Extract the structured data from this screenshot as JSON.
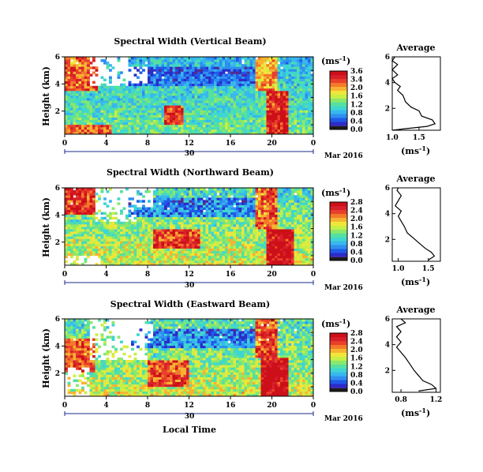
{
  "colors": {
    "scale": [
      "#1c1c1c",
      "#5a2a8c",
      "#2c2cc8",
      "#1f5ae8",
      "#2f8ff0",
      "#37b7ee",
      "#3fd6d0",
      "#56e0a0",
      "#8be86a",
      "#c7ef46",
      "#f0e63a",
      "#f7b232",
      "#f47a2a",
      "#e8402a",
      "#d81f2a",
      "#cc0f18"
    ],
    "axis": "#000000",
    "time_axis": "#1a2a8a",
    "profile": "#000000"
  },
  "chart_data": [
    {
      "type": "heatmap",
      "title": "Spectral Width (Vertical Beam)",
      "ylabel": "Height (km)",
      "yticks": [
        "6",
        "4",
        "2"
      ],
      "ylim": [
        0.3,
        6
      ],
      "xticks": [
        "0",
        "4",
        "8",
        "12",
        "16",
        "20",
        "0"
      ],
      "xlim": [
        0,
        24
      ],
      "date_day": "30",
      "date_month": "Mar 2016",
      "colorbar": {
        "unit_base": "(ms",
        "unit_exp": "-1",
        "unit_close": ")",
        "ticks": [
          "3.6",
          "3.4",
          "2.0",
          "1.6",
          "1.2",
          "0.8",
          "0.4",
          "0.0"
        ],
        "range": [
          0,
          3.6
        ]
      },
      "average": {
        "title": "Average",
        "yticks": [
          "6",
          "4",
          "2"
        ],
        "xticks": [
          "1.0",
          "1.5"
        ],
        "xlim": [
          1.0,
          1.9
        ],
        "xlabel_base": "(ms",
        "xlabel_exp": "-1",
        "xlabel_close": ")",
        "profile": [
          [
            1.0,
            0.3
          ],
          [
            1.2,
            0.4
          ],
          [
            1.65,
            0.6
          ],
          [
            1.8,
            0.8
          ],
          [
            1.75,
            1.1
          ],
          [
            1.55,
            1.4
          ],
          [
            1.5,
            1.8
          ],
          [
            1.35,
            2.1
          ],
          [
            1.25,
            2.5
          ],
          [
            1.2,
            3.0
          ],
          [
            1.1,
            3.4
          ],
          [
            1.15,
            3.7
          ],
          [
            1.05,
            4.0
          ],
          [
            1.0,
            4.3
          ],
          [
            1.1,
            4.6
          ],
          [
            1.0,
            5.0
          ],
          [
            1.1,
            5.4
          ],
          [
            1.0,
            5.7
          ],
          [
            1.05,
            6.0
          ]
        ]
      },
      "regions": [
        {
          "t0": 0,
          "t1": 3.2,
          "h0": 3.5,
          "h1": 6,
          "v": 3.0
        },
        {
          "t0": 0,
          "t1": 4.5,
          "h0": 0.3,
          "h1": 1.0,
          "v": 2.8
        },
        {
          "t0": 9.5,
          "t1": 11.5,
          "h0": 1.0,
          "h1": 2.5,
          "v": 3.1
        },
        {
          "t0": 19.5,
          "t1": 21.5,
          "h0": 0.3,
          "h1": 3.5,
          "v": 3.3
        },
        {
          "t0": 18.5,
          "t1": 20.5,
          "h0": 3.5,
          "h1": 6.0,
          "v": 2.6
        }
      ],
      "missing": [
        {
          "t0": 2.5,
          "t1": 6.0,
          "h0": 3.8,
          "h1": 6.0
        },
        {
          "t0": 5.5,
          "t1": 8.0,
          "h0": 4.0,
          "h1": 5.2
        }
      ]
    },
    {
      "type": "heatmap",
      "title": "Spectral Width (Northward Beam)",
      "ylabel": "Height (km)",
      "yticks": [
        "6",
        "4",
        "2"
      ],
      "ylim": [
        0.3,
        6
      ],
      "xticks": [
        "0",
        "4",
        "8",
        "12",
        "16",
        "20",
        "0"
      ],
      "xlim": [
        0,
        24
      ],
      "date_day": "30",
      "date_month": "Mar 2016",
      "colorbar": {
        "unit_base": "(ms",
        "unit_exp": "-1",
        "unit_close": ")",
        "ticks": [
          "2.8",
          "2.4",
          "2.0",
          "1.6",
          "1.2",
          "0.8",
          "0.4",
          "0.0"
        ],
        "range": [
          0,
          2.8
        ]
      },
      "average": {
        "title": "Average",
        "yticks": [
          "6",
          "4",
          "2"
        ],
        "xticks": [
          "1.0",
          "1.5"
        ],
        "xlim": [
          0.9,
          1.7
        ],
        "xlabel_base": "(ms",
        "xlabel_exp": "-1",
        "xlabel_close": ")",
        "profile": [
          [
            1.5,
            0.4
          ],
          [
            1.6,
            0.7
          ],
          [
            1.55,
            1.0
          ],
          [
            1.45,
            1.3
          ],
          [
            1.35,
            1.7
          ],
          [
            1.25,
            2.1
          ],
          [
            1.15,
            2.5
          ],
          [
            1.1,
            3.0
          ],
          [
            1.05,
            3.4
          ],
          [
            1.0,
            3.8
          ],
          [
            1.05,
            4.2
          ],
          [
            0.95,
            4.6
          ],
          [
            1.0,
            5.0
          ],
          [
            1.05,
            5.4
          ],
          [
            0.98,
            5.8
          ],
          [
            1.0,
            6.0
          ]
        ]
      },
      "regions": [
        {
          "t0": 0,
          "t1": 3.0,
          "h0": 4.0,
          "h1": 6,
          "v": 2.5
        },
        {
          "t0": 8.5,
          "t1": 13.0,
          "h0": 1.5,
          "h1": 3.0,
          "v": 2.3
        },
        {
          "t0": 19.5,
          "t1": 22.0,
          "h0": 0.3,
          "h1": 3.0,
          "v": 2.7
        },
        {
          "t0": 18.5,
          "t1": 20.5,
          "h0": 3.0,
          "h1": 6.0,
          "v": 2.2
        }
      ],
      "missing": [
        {
          "t0": 0.0,
          "t1": 3.5,
          "h0": 0.3,
          "h1": 1.0
        },
        {
          "t0": 3.0,
          "t1": 7.0,
          "h0": 3.5,
          "h1": 6.0
        },
        {
          "t0": 4.5,
          "t1": 8.5,
          "h0": 4.5,
          "h1": 6.0
        }
      ]
    },
    {
      "type": "heatmap",
      "title": "Spectral Width (Eastward Beam)",
      "ylabel": "Height (km)",
      "yticks": [
        "6",
        "4",
        "2"
      ],
      "ylim": [
        0.3,
        6
      ],
      "xticks": [
        "0",
        "4",
        "8",
        "12",
        "16",
        "20",
        "0"
      ],
      "xlim": [
        0,
        24
      ],
      "xlabel": "Local Time",
      "date_day": "30",
      "date_month": "Mar 2016",
      "colorbar": {
        "unit_base": "(ms",
        "unit_exp": "-1",
        "unit_close": ")",
        "ticks": [
          "2.8",
          "2.4",
          "2.0",
          "1.6",
          "1.2",
          "0.8",
          "0.4",
          "0.0"
        ],
        "range": [
          0,
          2.8
        ]
      },
      "average": {
        "title": "Average",
        "yticks": [
          "6",
          "4",
          "2"
        ],
        "xticks": [
          "0.8",
          "1.2"
        ],
        "xlim": [
          0.7,
          1.25
        ],
        "xlabel_base": "(ms",
        "xlabel_exp": "-1",
        "xlabel_close": ")",
        "profile": [
          [
            1.0,
            0.4
          ],
          [
            1.2,
            0.6
          ],
          [
            1.15,
            0.9
          ],
          [
            1.05,
            1.2
          ],
          [
            1.0,
            1.6
          ],
          [
            0.95,
            2.0
          ],
          [
            0.9,
            2.5
          ],
          [
            0.85,
            3.0
          ],
          [
            0.8,
            3.4
          ],
          [
            0.75,
            3.8
          ],
          [
            0.8,
            4.2
          ],
          [
            0.75,
            4.6
          ],
          [
            0.8,
            5.0
          ],
          [
            0.75,
            5.4
          ],
          [
            0.85,
            5.7
          ],
          [
            0.8,
            6.0
          ]
        ]
      },
      "regions": [
        {
          "t0": 0,
          "t1": 3.0,
          "h0": 2.0,
          "h1": 4.5,
          "v": 2.2
        },
        {
          "t0": 8.0,
          "t1": 12.0,
          "h0": 1.0,
          "h1": 3.0,
          "v": 2.2
        },
        {
          "t0": 19.0,
          "t1": 21.5,
          "h0": 0.3,
          "h1": 3.2,
          "v": 2.7
        },
        {
          "t0": 18.5,
          "t1": 20.5,
          "h0": 3.2,
          "h1": 6.0,
          "v": 2.3
        }
      ],
      "missing": [
        {
          "t0": 0.0,
          "t1": 2.5,
          "h0": 0.3,
          "h1": 2.5
        },
        {
          "t0": 2.5,
          "t1": 8.0,
          "h0": 3.0,
          "h1": 6.0
        },
        {
          "t0": 5.0,
          "t1": 8.5,
          "h0": 4.5,
          "h1": 6.0
        }
      ]
    }
  ]
}
